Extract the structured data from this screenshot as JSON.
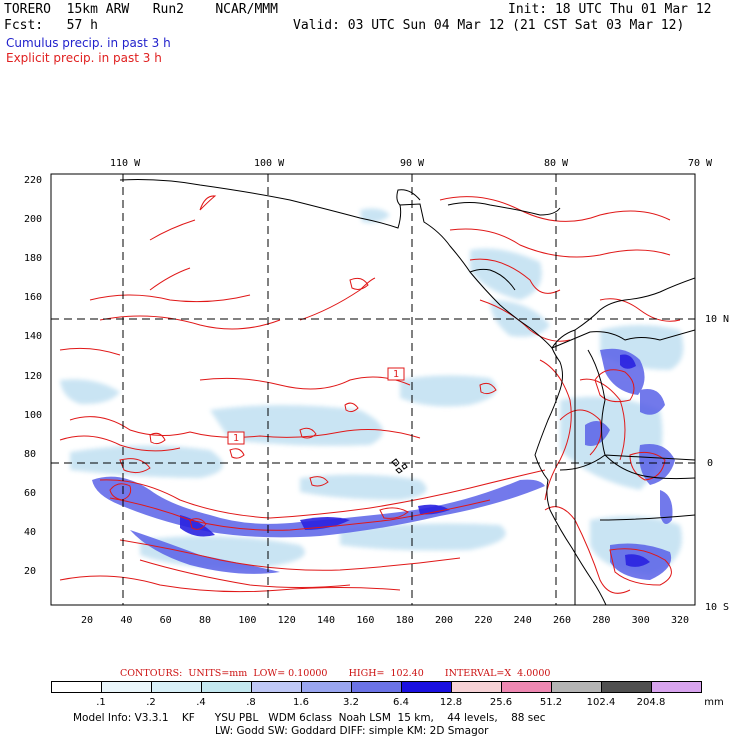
{
  "header": {
    "model_line": "TORERO  15km ARW   Run2    NCAR/MMM",
    "init": "Init: 18 UTC Thu 01 Mar 12",
    "fcst": "Fcst:   57 h",
    "valid": "Valid: 03 UTC Sun 04 Mar 12 (21 CST Sat 03 Mar 12)",
    "legend_cumulus": "Cumulus precip. in past 3 h",
    "legend_explicit": "Explicit precip. in past 3 h"
  },
  "map": {
    "top_labels": [
      "110 W",
      "100 W",
      "90 W",
      "80 W",
      "70 W"
    ],
    "right_labels": [
      "10 N",
      "0",
      "10 S"
    ],
    "left_ticks": [
      "220",
      "200",
      "180",
      "160",
      "140",
      "120",
      "100",
      "80",
      "60",
      "40",
      "20"
    ],
    "bottom_ticks": [
      "20",
      "40",
      "60",
      "80",
      "100",
      "120",
      "140",
      "160",
      "180",
      "200",
      "220",
      "240",
      "260",
      "280",
      "300",
      "320"
    ],
    "box_labels": [
      "1",
      "1"
    ],
    "colors": {
      "cumulus": "#4040ee",
      "explicit": "#e01818",
      "coast": "#000000"
    }
  },
  "colorbar": {
    "contours_label": "CONTOURS:  UNITS=mm  LOW= 0.10000       HIGH=  102.40       INTERVAL=X  4.0000",
    "tick_labels": [
      ".1",
      ".2",
      ".4",
      ".8",
      "1.6",
      "3.2",
      "6.4",
      "12.8",
      "25.6",
      "51.2",
      "102.4",
      "204.8"
    ],
    "unit": "mm",
    "colors": [
      "#ffffff",
      "#eaf6fb",
      "#d8f0f8",
      "#c4e8f0",
      "#bfc8f6",
      "#9aa6f0",
      "#6b73e6",
      "#1a10e0",
      "#f6d2d6",
      "#ee88b2",
      "#b4b4b4",
      "#505050",
      "#d8a4ee"
    ]
  },
  "footer": {
    "line1": "Model Info: V3.3.1    KF      YSU PBL   WDM 6class  Noah LSM  15 km,    44 levels,    88 sec",
    "line2": "LW: Godd SW: Goddard DIFF: simple KM: 2D Smagor"
  }
}
